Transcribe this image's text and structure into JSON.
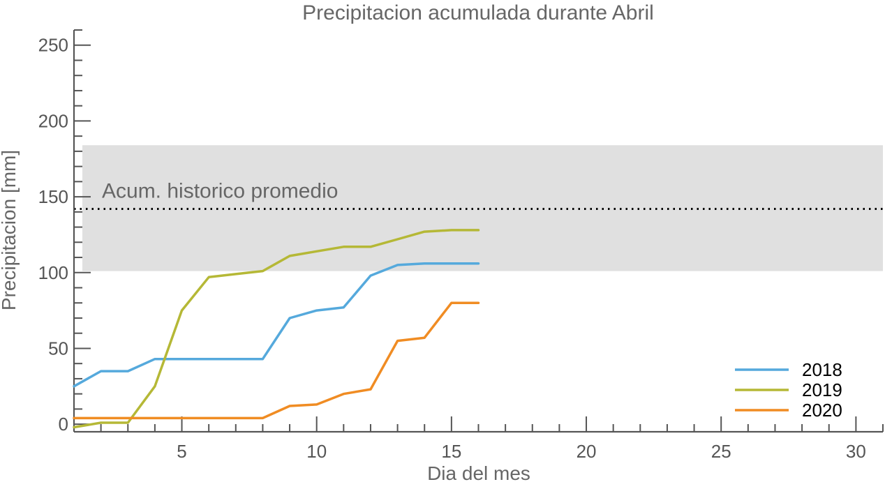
{
  "chart_data": {
    "type": "line",
    "title": "Precipitacion acumulada durante Abril",
    "xlabel": "Dia del mes",
    "ylabel": "Precipitacion [mm]",
    "xlim": [
      1,
      31
    ],
    "ylim": [
      -5,
      260
    ],
    "xticks": [
      5,
      10,
      15,
      20,
      25,
      30
    ],
    "yticks": [
      0,
      50,
      100,
      150,
      200,
      250
    ],
    "band": {
      "label": "Acum. historico promedio",
      "lower": 101,
      "upper": 184,
      "mean": 142,
      "fill_color": "#e0e0e0",
      "line_color": "#000000"
    },
    "legend_position": "bottom-right",
    "series": [
      {
        "name": "2018",
        "color": "#55a9dc",
        "x": [
          1,
          2,
          3,
          4,
          5,
          6,
          7,
          8,
          9,
          10,
          11,
          12,
          13,
          14,
          15,
          16
        ],
        "y": [
          25,
          35,
          35,
          43,
          43,
          43,
          43,
          43,
          70,
          75,
          77,
          98,
          105,
          106,
          106,
          106
        ]
      },
      {
        "name": "2019",
        "color": "#b5b836",
        "x": [
          1,
          2,
          3,
          4,
          5,
          6,
          7,
          8,
          9,
          10,
          11,
          12,
          13,
          14,
          15,
          16
        ],
        "y": [
          -2,
          1,
          1,
          25,
          75,
          97,
          99,
          101,
          111,
          114,
          117,
          117,
          122,
          127,
          128,
          128
        ]
      },
      {
        "name": "2020",
        "color": "#f08c23",
        "x": [
          1,
          2,
          3,
          4,
          5,
          6,
          7,
          8,
          9,
          10,
          11,
          12,
          13,
          14,
          15,
          16
        ],
        "y": [
          4,
          4,
          4,
          4,
          4,
          4,
          4,
          4,
          12,
          13,
          20,
          23,
          55,
          57,
          80,
          80
        ]
      }
    ]
  }
}
